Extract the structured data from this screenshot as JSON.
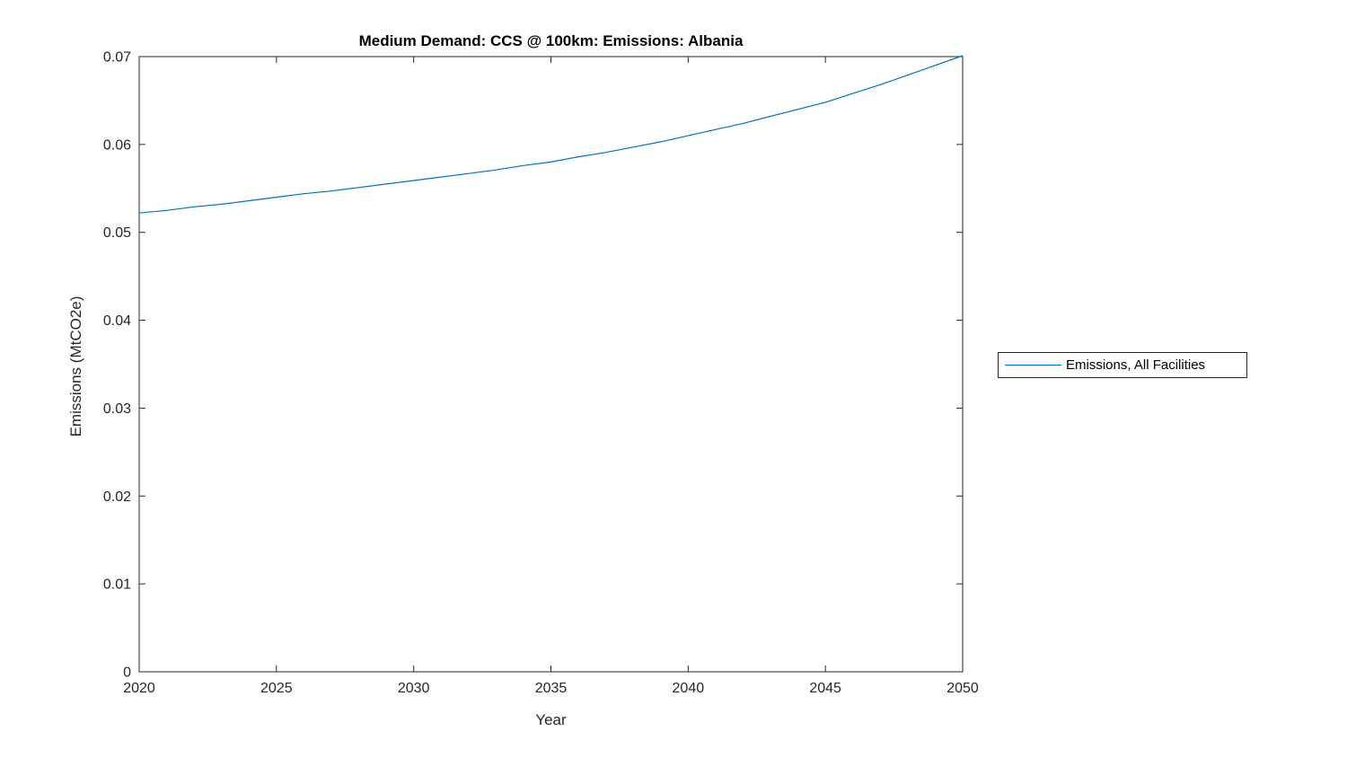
{
  "figure": {
    "background": "#ffffff",
    "axis_color": "#262626",
    "title_color": "#000000"
  },
  "chart_data": {
    "type": "line",
    "title": "Medium Demand: CCS @ 100km: Emissions: Albania",
    "xlabel": "Year",
    "ylabel": "Emissions (MtCO2e)",
    "xlim": [
      2020,
      2050
    ],
    "ylim": [
      0,
      0.07
    ],
    "x_ticks": [
      2020,
      2025,
      2030,
      2035,
      2040,
      2045,
      2050
    ],
    "y_ticks": [
      0,
      0.01,
      0.02,
      0.03,
      0.04,
      0.05,
      0.06,
      0.07
    ],
    "grid": false,
    "box": true,
    "legend_position": "outside-right",
    "series": [
      {
        "name": "Emissions, All Facilities",
        "color": "#0072BD",
        "x": [
          2020,
          2021,
          2022,
          2023,
          2024,
          2025,
          2026,
          2027,
          2028,
          2029,
          2030,
          2031,
          2032,
          2033,
          2034,
          2035,
          2036,
          2037,
          2038,
          2039,
          2040,
          2041,
          2042,
          2043,
          2044,
          2045,
          2046,
          2047,
          2048,
          2049,
          2050
        ],
        "values": [
          0.0522,
          0.0525,
          0.0529,
          0.0532,
          0.0536,
          0.054,
          0.0544,
          0.0547,
          0.0551,
          0.0555,
          0.0559,
          0.0563,
          0.0567,
          0.0571,
          0.0576,
          0.058,
          0.0586,
          0.0591,
          0.0597,
          0.0603,
          0.061,
          0.0617,
          0.0624,
          0.0632,
          0.064,
          0.0648,
          0.0658,
          0.0668,
          0.0679,
          0.069,
          0.0701
        ]
      }
    ]
  }
}
